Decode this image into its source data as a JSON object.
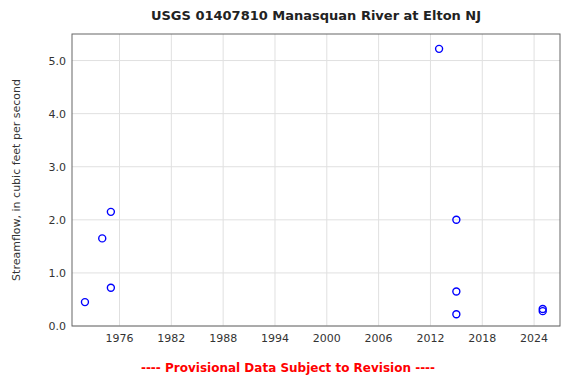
{
  "chart_data": {
    "type": "scatter",
    "title": "USGS 01407810 Manasquan River at Elton NJ",
    "subtitle": "---- Provisional Data Subject to Revision ----",
    "y_label": "Streamflow, in cubic feet per second",
    "x": [
      1972,
      1974,
      1975,
      1975,
      2013,
      2015,
      2015,
      2015,
      2025,
      2025
    ],
    "values": [
      0.45,
      1.65,
      0.72,
      2.15,
      5.22,
      2.0,
      0.65,
      0.22,
      0.28,
      0.32
    ],
    "color": "blue",
    "marker": "circle",
    "xlim": [
      1970.5,
      2027
    ],
    "ylim": [
      0.0,
      5.5
    ],
    "xticks": [
      1976,
      1982,
      1988,
      1994,
      2000,
      2006,
      2012,
      2018,
      2024
    ],
    "yticks": [
      {
        "value": 0.0,
        "label": "0.0"
      },
      {
        "value": 1.0,
        "label": "1.0"
      },
      {
        "value": 2.0,
        "label": "2.0"
      },
      {
        "value": 3.0,
        "label": "3.0"
      },
      {
        "value": 4.0,
        "label": "4.0"
      },
      {
        "value": 5.0,
        "label": "5.0"
      }
    ],
    "grid": true
  }
}
